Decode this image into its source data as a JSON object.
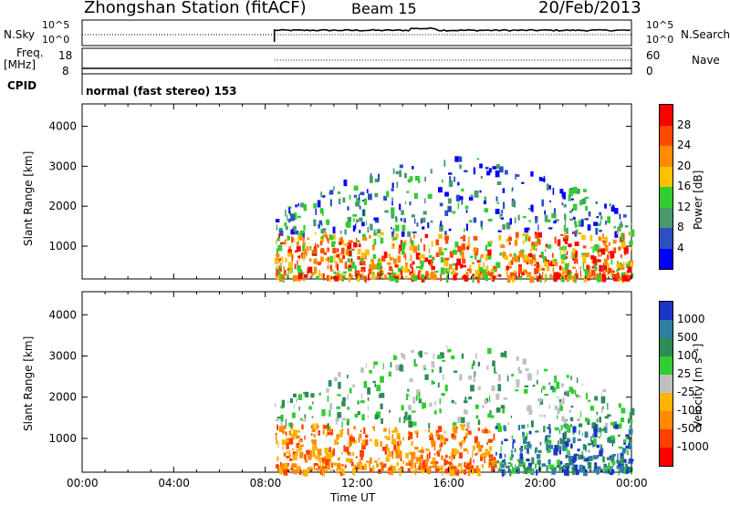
{
  "header": {
    "station": "Zhongshan Station (fitACF)",
    "beam": "Beam 15",
    "date": "20/Feb/2013"
  },
  "status_panel": {
    "nsky_label": "N.Sky",
    "nsky_ticks": [
      "10^5",
      "10^0"
    ],
    "nsearch_label": "N.Search",
    "nsearch_ticks": [
      "10^5",
      "10^0"
    ],
    "freq_label_line1": "Freq.",
    "freq_label_line2": "[MHz]",
    "freq_ticks": [
      "18",
      "8"
    ],
    "nave_label": "Nave",
    "nave_ticks": [
      "60",
      "0"
    ],
    "cpid_label": "CPID",
    "cpid_text": "normal (fast stereo) 153"
  },
  "chart_data": [
    {
      "type": "heatmap",
      "name": "Power",
      "ylabel": "Slant Range [km]",
      "yticks": [
        1000,
        2000,
        3000,
        4000
      ],
      "ylim": [
        180,
        4560
      ],
      "xlim": [
        0,
        24
      ],
      "data_start_hour": 8.4,
      "colorbar_label": "Power [dB]",
      "colorbar_ticks": [
        "28",
        "24",
        "20",
        "16",
        "12",
        "8",
        "4"
      ],
      "colorbar_colors": [
        "#ff0000",
        "#ff4a00",
        "#ff8c00",
        "#ffc000",
        "#33cc33",
        "#4a9a6e",
        "#2b4fbf",
        "#0000ff"
      ]
    },
    {
      "type": "heatmap",
      "name": "Velocity",
      "ylabel": "Slant Range [km]",
      "yticks": [
        1000,
        2000,
        3000,
        4000
      ],
      "ylim": [
        180,
        4560
      ],
      "xlim": [
        0,
        24
      ],
      "data_start_hour": 8.4,
      "colorbar_label": "Velocity [m s⁻¹]",
      "colorbar_ticks": [
        "1000",
        "500",
        "100",
        "25",
        "-25",
        "-100",
        "-500",
        "-1000"
      ],
      "colorbar_colors": [
        "#1a35c8",
        "#2e7fa0",
        "#2e8b57",
        "#33cc33",
        "#c0c0c0",
        "#ffb400",
        "#ff8a00",
        "#ff4000",
        "#ff0000"
      ]
    }
  ],
  "xaxis": {
    "label": "Time UT",
    "ticks": [
      "00:00",
      "04:00",
      "08:00",
      "12:00",
      "16:00",
      "20:00",
      "00:00"
    ]
  },
  "colors": {
    "frame": "#000000"
  }
}
